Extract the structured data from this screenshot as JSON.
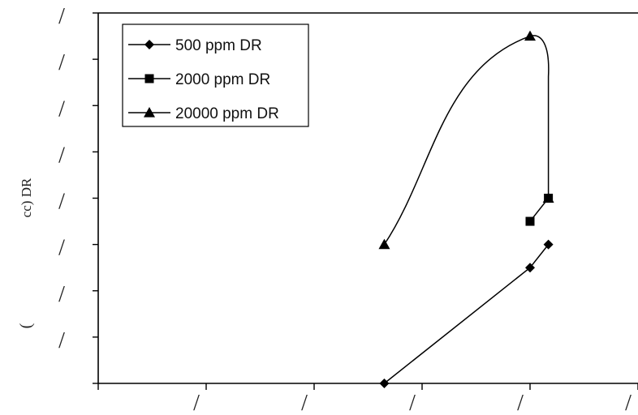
{
  "chart_data": {
    "type": "line",
    "ylabel": "cc) DR",
    "side_mark": "(",
    "x_tick_labels": [
      "/",
      "/",
      "/",
      "/",
      "/",
      "/"
    ],
    "y_tick_labels": [
      "/",
      "/",
      "/",
      "/",
      "/",
      "/",
      "/",
      "/"
    ],
    "xlim": [
      0,
      5
    ],
    "ylim": [
      0,
      8
    ],
    "legend_position": "top-left",
    "grid": false,
    "series": [
      {
        "name": "500 ppm DR",
        "marker": "diamond",
        "color": "#000000",
        "points": [
          [
            2.65,
            0
          ],
          [
            4.0,
            2.5
          ],
          [
            4.17,
            3.0
          ]
        ]
      },
      {
        "name": "2000 ppm DR",
        "marker": "square",
        "color": "#000000",
        "points": [
          [
            4.0,
            3.5
          ],
          [
            4.17,
            4.0
          ]
        ]
      },
      {
        "name": "20000 ppm DR",
        "marker": "triangle",
        "color": "#000000",
        "points": [
          [
            2.65,
            3.0
          ],
          [
            4.0,
            7.5
          ],
          [
            4.17,
            4.0
          ]
        ]
      }
    ]
  }
}
